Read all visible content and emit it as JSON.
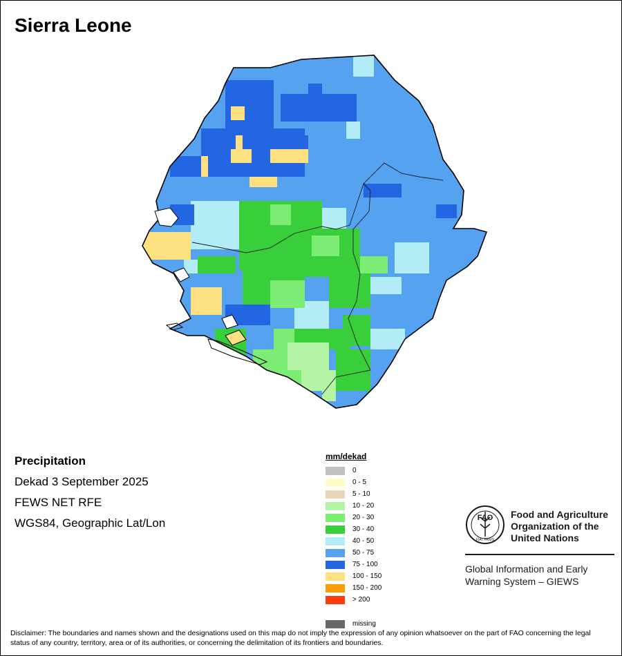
{
  "title": "Sierra Leone",
  "info": {
    "heading": "Precipitation",
    "period": "Dekad 3 September 2025",
    "source": "FEWS NET RFE",
    "projection": "WGS84, Geographic Lat/Lon"
  },
  "legend": {
    "title": "mm/dekad",
    "classes": [
      {
        "label": "0",
        "color": "#c0c0c0"
      },
      {
        "label": "0 - 5",
        "color": "#fffec8"
      },
      {
        "label": "5 - 10",
        "color": "#e9d6b7"
      },
      {
        "label": "10 - 20",
        "color": "#b4f5a5"
      },
      {
        "label": "20 - 30",
        "color": "#7bec74"
      },
      {
        "label": "30 - 40",
        "color": "#38cf3b"
      },
      {
        "label": "40 - 50",
        "color": "#b2ecf6"
      },
      {
        "label": "50 - 75",
        "color": "#55a2f0"
      },
      {
        "label": "75 - 100",
        "color": "#2466e2"
      },
      {
        "label": "100 - 150",
        "color": "#fde07f"
      },
      {
        "label": "150 - 200",
        "color": "#fc9d06"
      },
      {
        "label": "> 200",
        "color": "#fe3c0e"
      }
    ],
    "missing": {
      "label": "missing",
      "color": "#686868"
    }
  },
  "logo": {
    "org_name": "Food and Agriculture Organization of the United Nations",
    "program": "Global Information and Early Warning System – GIEWS",
    "emblem_letters": "FAO",
    "motto": "FIAT PANIS"
  },
  "disclaimer": "Disclaimer: The boundaries and names shown and the designations used on this map do not imply the expression of any opinion whatsoever on the part of FAO concerning the legal status of any country, territory, area or of its authorities, or concerning the delimitation of its frontiers and boundaries."
}
